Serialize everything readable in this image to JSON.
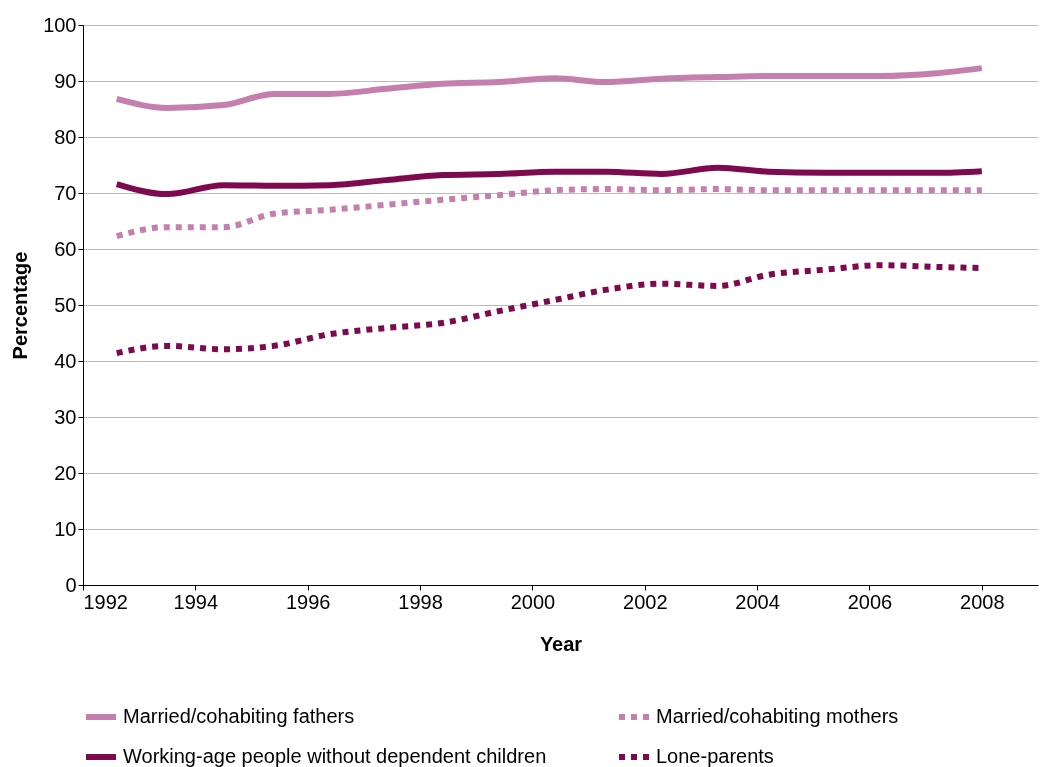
{
  "chart_data": {
    "type": "line",
    "xlabel": "Year",
    "ylabel": "Percentage",
    "x": [
      1992.6,
      1993.5,
      1994.5,
      1995.4,
      1996.4,
      1997.4,
      1998.4,
      1999.4,
      2000.4,
      2001.3,
      2002.3,
      2003.3,
      2004.2,
      2005.2,
      2006.2,
      2007.2,
      2008
    ],
    "series": [
      {
        "name": "Married/cohabiting fathers",
        "color": "#c47fae",
        "line_style": "solid",
        "values": [
          86.8,
          85.2,
          85.7,
          87.7,
          87.7,
          88.6,
          89.5,
          89.8,
          90.5,
          89.8,
          90.4,
          90.7,
          90.9,
          90.9,
          90.9,
          91.4,
          92.3
        ]
      },
      {
        "name": "Married/cohabiting mothers",
        "color": "#c47fae",
        "line_style": "dotted",
        "values": [
          62.3,
          63.9,
          63.9,
          66.3,
          67,
          67.9,
          68.8,
          69.6,
          70.5,
          70.7,
          70.5,
          70.7,
          70.5,
          70.5,
          70.5,
          70.5,
          70.5
        ]
      },
      {
        "name": "Working-age people without dependent children",
        "color": "#7d0a4e",
        "line_style": "solid",
        "values": [
          71.6,
          69.8,
          71.4,
          71.3,
          71.4,
          72.3,
          73.2,
          73.4,
          73.8,
          73.8,
          73.4,
          74.5,
          73.8,
          73.6,
          73.6,
          73.6,
          73.9
        ]
      },
      {
        "name": "Lone-parents",
        "color": "#7d0a4e",
        "line_style": "dotted",
        "values": [
          41.4,
          42.7,
          42.1,
          42.7,
          44.8,
          45.9,
          46.8,
          48.9,
          50.9,
          52.7,
          53.8,
          53.4,
          55.4,
          56.3,
          57.1,
          56.8,
          56.6
        ]
      }
    ],
    "xlim": [
      1992,
      2009
    ],
    "xticks": [
      1992,
      1994,
      1996,
      1998,
      2000,
      2002,
      2004,
      2006,
      2008
    ],
    "ylim": [
      0,
      100
    ],
    "yticks": [
      0,
      10,
      20,
      30,
      40,
      50,
      60,
      70,
      80,
      90,
      100
    ],
    "grid": "y",
    "legend": "bottom"
  }
}
